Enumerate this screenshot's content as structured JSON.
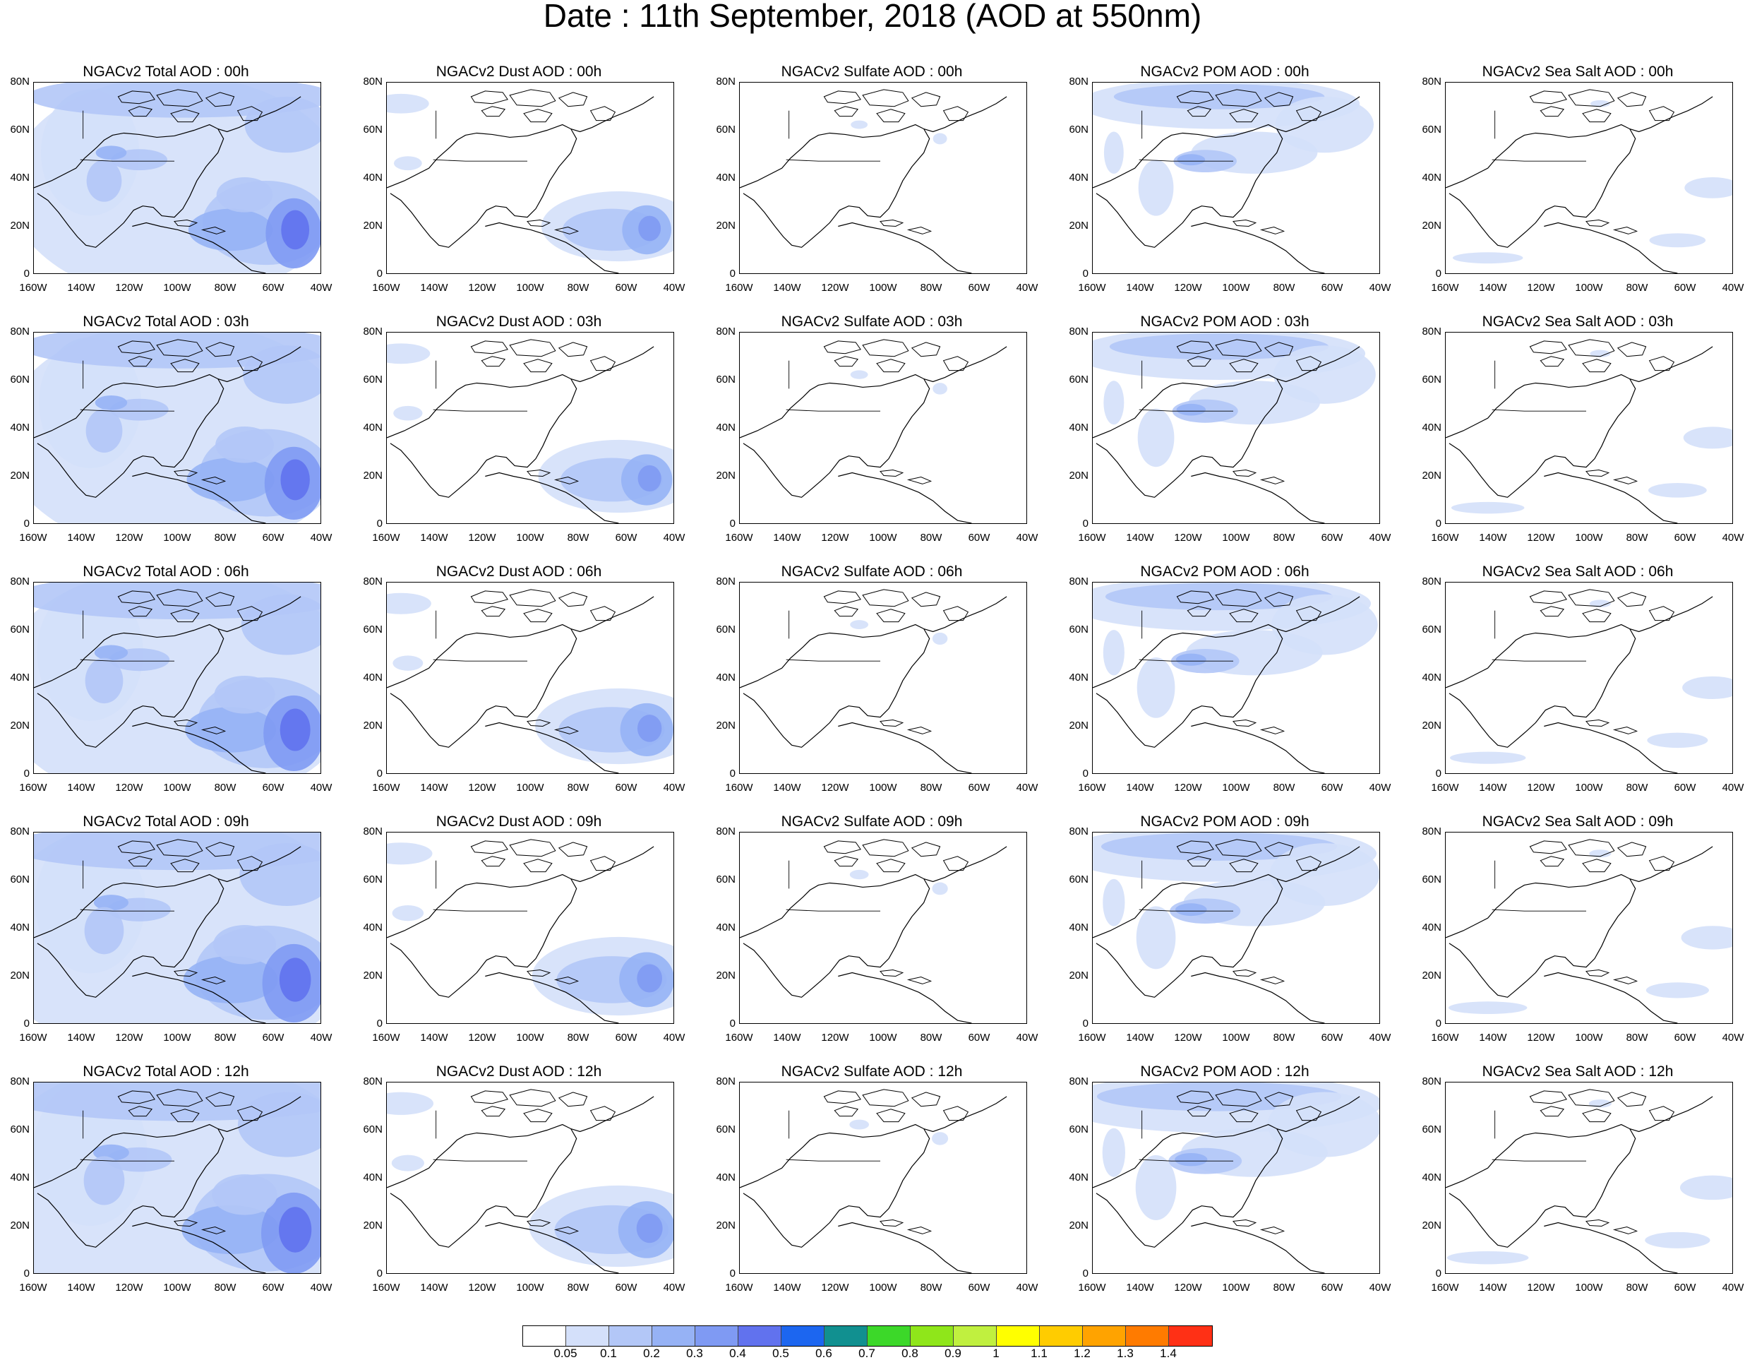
{
  "title": "Date : 11th September, 2018 (AOD at 550nm)",
  "y_ticks": [
    "80N",
    "60N",
    "40N",
    "20N",
    "0"
  ],
  "x_ticks": [
    "160W",
    "140W",
    "120W",
    "100W",
    "80W",
    "60W",
    "40W"
  ],
  "row_titles": [
    [
      "NGACv2 Total AOD : 00h",
      "NGACv2 Dust AOD : 00h",
      "NGACv2 Sulfate AOD : 00h",
      "NGACv2 POM AOD : 00h",
      "NGACv2 Sea Salt AOD : 00h"
    ],
    [
      "NGACv2 Total AOD : 03h",
      "NGACv2 Dust AOD : 03h",
      "NGACv2 Sulfate AOD : 03h",
      "NGACv2 POM AOD : 03h",
      "NGACv2 Sea Salt AOD : 03h"
    ],
    [
      "NGACv2 Total AOD : 06h",
      "NGACv2 Dust AOD : 06h",
      "NGACv2 Sulfate AOD : 06h",
      "NGACv2 POM AOD : 06h",
      "NGACv2 Sea Salt AOD : 06h"
    ],
    [
      "NGACv2 Total AOD : 09h",
      "NGACv2 Dust AOD : 09h",
      "NGACv2 Sulfate AOD : 09h",
      "NGACv2 POM AOD : 09h",
      "NGACv2 Sea Salt  AOD : 09h"
    ],
    [
      "NGACv2 Total AOD  : 12h",
      "NGACv2 Dust AOD : 12h",
      "NGACv2 Sulfate AOD : 12h",
      "NGACv2 POM  AOD : 12h",
      "NGACv2 Sea Salt  AOD : 12h"
    ]
  ],
  "colorbar": {
    "colors": [
      "#ffffff",
      "#d4e0fa",
      "#b3c7f7",
      "#96b2f5",
      "#7f9af3",
      "#6172ee",
      "#1c66f0",
      "#119090",
      "#3cd829",
      "#8fe61a",
      "#c0f03f",
      "#ffff00",
      "#ffcc00",
      "#ffa300",
      "#ff7b00",
      "#ff3015"
    ],
    "labels": [
      "0.05",
      "0.1",
      "0.2",
      "0.3",
      "0.4",
      "0.5",
      "0.6",
      "0.7",
      "0.8",
      "0.9",
      "1",
      "1.1",
      "1.2",
      "1.3",
      "1.4"
    ]
  }
}
